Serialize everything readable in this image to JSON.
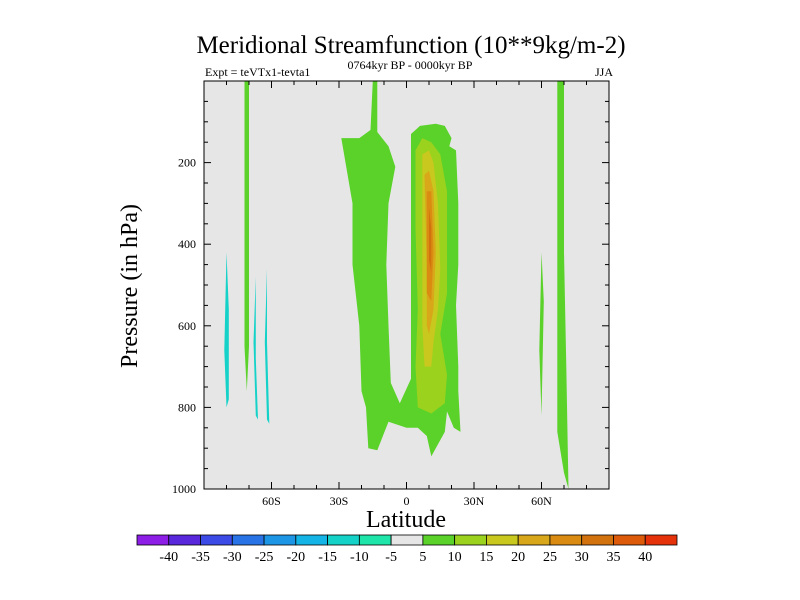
{
  "chart_data": {
    "type": "contour",
    "title": "Meridional Streamfunction (10**9kg/m-2)",
    "subtitle_left": "Expt = teVTx1-tevta1",
    "subtitle_center": "0764kyr BP - 0000kyr BP",
    "subtitle_right": "JJA",
    "xlabel": "Latitude",
    "ylabel": "Pressure (in hPa)",
    "xlim": [
      -90,
      90
    ],
    "ylim": [
      1000,
      0
    ],
    "x_ticks": [
      {
        "value": -60,
        "label": "60S"
      },
      {
        "value": -30,
        "label": "30S"
      },
      {
        "value": 0,
        "label": "0"
      },
      {
        "value": 30,
        "label": "30N"
      },
      {
        "value": 60,
        "label": "60N"
      }
    ],
    "y_ticks": [
      {
        "value": 200,
        "label": "200"
      },
      {
        "value": 400,
        "label": "400"
      },
      {
        "value": 600,
        "label": "600"
      },
      {
        "value": 800,
        "label": "800"
      },
      {
        "value": 1000,
        "label": "1000"
      }
    ],
    "background_level_color": "#e6e6e6",
    "filled_regions": [
      {
        "name": "main-band-5-10",
        "level": 5,
        "color": "#5ad22a",
        "points": [
          [
            -15,
            0
          ],
          [
            -13,
            0
          ],
          [
            -13,
            125
          ],
          [
            -8,
            160
          ],
          [
            -5,
            210
          ],
          [
            -8,
            300
          ],
          [
            -9,
            450
          ],
          [
            -8,
            600
          ],
          [
            -7,
            740
          ],
          [
            -3,
            790
          ],
          [
            2,
            730
          ],
          [
            2,
            130
          ],
          [
            6,
            110
          ],
          [
            13,
            105
          ],
          [
            17,
            110
          ],
          [
            20,
            140
          ],
          [
            19,
            160
          ],
          [
            22,
            170
          ],
          [
            23,
            300
          ],
          [
            23,
            450
          ],
          [
            22,
            550
          ],
          [
            23,
            700
          ],
          [
            23,
            760
          ],
          [
            24,
            860
          ],
          [
            21,
            850
          ],
          [
            18,
            810
          ],
          [
            17,
            860
          ],
          [
            11,
            920
          ],
          [
            9,
            870
          ],
          [
            5,
            850
          ],
          [
            0,
            850
          ],
          [
            -8,
            835
          ],
          [
            -13,
            905
          ],
          [
            -17,
            900
          ],
          [
            -18,
            800
          ],
          [
            -20,
            760
          ],
          [
            -21,
            600
          ],
          [
            -24,
            450
          ],
          [
            -24,
            300
          ],
          [
            -29,
            140
          ],
          [
            -21,
            140
          ],
          [
            -16,
            120
          ],
          [
            -15,
            0
          ]
        ]
      },
      {
        "name": "main-core-10-15",
        "level": 10,
        "color": "#9ad21e",
        "points": [
          [
            4,
            170
          ],
          [
            7,
            140
          ],
          [
            11,
            150
          ],
          [
            15,
            180
          ],
          [
            18,
            270
          ],
          [
            18,
            440
          ],
          [
            18,
            520
          ],
          [
            15,
            620
          ],
          [
            18,
            720
          ],
          [
            17,
            790
          ],
          [
            11,
            815
          ],
          [
            5,
            800
          ],
          [
            4,
            700
          ],
          [
            5,
            560
          ],
          [
            4,
            360
          ],
          [
            4,
            170
          ]
        ]
      },
      {
        "name": "main-core-15-20",
        "level": 15,
        "color": "#c8c81e",
        "points": [
          [
            7,
            180
          ],
          [
            10,
            170
          ],
          [
            12,
            200
          ],
          [
            14,
            300
          ],
          [
            15,
            460
          ],
          [
            14,
            560
          ],
          [
            12,
            640
          ],
          [
            11,
            700
          ],
          [
            8,
            700
          ],
          [
            7,
            600
          ],
          [
            7,
            400
          ],
          [
            7,
            180
          ]
        ]
      },
      {
        "name": "main-core-20-25",
        "level": 20,
        "color": "#d8a81a",
        "points": [
          [
            8,
            230
          ],
          [
            10,
            220
          ],
          [
            12,
            270
          ],
          [
            13,
            420
          ],
          [
            12,
            560
          ],
          [
            10,
            620
          ],
          [
            9,
            600
          ],
          [
            9,
            450
          ],
          [
            8,
            230
          ]
        ]
      },
      {
        "name": "main-core-25-30",
        "level": 25,
        "color": "#da8c12",
        "points": [
          [
            9,
            270
          ],
          [
            11,
            270
          ],
          [
            12,
            420
          ],
          [
            11,
            540
          ],
          [
            9,
            520
          ],
          [
            9,
            270
          ]
        ]
      },
      {
        "name": "main-core-30-35",
        "level": 30,
        "color": "#d2720f",
        "points": [
          [
            10,
            310
          ],
          [
            11,
            360
          ],
          [
            11,
            470
          ],
          [
            10,
            440
          ],
          [
            10,
            310
          ]
        ]
      },
      {
        "name": "sh-streak-green",
        "level": 5,
        "color": "#5ad22a",
        "points": [
          [
            -72,
            0
          ],
          [
            -70,
            0
          ],
          [
            -70,
            650
          ],
          [
            -71,
            760
          ],
          [
            -72,
            650
          ],
          [
            -72,
            0
          ]
        ]
      },
      {
        "name": "nh-streak-green",
        "level": 5,
        "color": "#5ad22a",
        "points": [
          [
            67,
            0
          ],
          [
            70,
            0
          ],
          [
            70,
            420
          ],
          [
            71,
            700
          ],
          [
            72,
            1000
          ],
          [
            70,
            960
          ],
          [
            67,
            860
          ],
          [
            67,
            0
          ]
        ]
      },
      {
        "name": "nh-streak-green-small",
        "level": 5,
        "color": "#5ad22a",
        "points": [
          [
            60,
            420
          ],
          [
            61,
            540
          ],
          [
            60,
            820
          ],
          [
            59,
            660
          ],
          [
            60,
            420
          ]
        ]
      },
      {
        "name": "sh-streak-cyan-1",
        "level": -10,
        "color": "#14d2c8",
        "points": [
          [
            -80,
            420
          ],
          [
            -79,
            560
          ],
          [
            -79,
            780
          ],
          [
            -80,
            800
          ],
          [
            -81,
            660
          ],
          [
            -80,
            420
          ]
        ]
      },
      {
        "name": "sh-streak-cyan-2",
        "level": -10,
        "color": "#14d2c8",
        "points": [
          [
            -67,
            480
          ],
          [
            -67,
            680
          ],
          [
            -66,
            830
          ],
          [
            -67,
            820
          ],
          [
            -68,
            640
          ],
          [
            -67,
            480
          ]
        ]
      },
      {
        "name": "sh-streak-cyan-3",
        "level": -10,
        "color": "#14d2c8",
        "points": [
          [
            -62,
            460
          ],
          [
            -62,
            640
          ],
          [
            -61,
            840
          ],
          [
            -62,
            830
          ],
          [
            -63,
            640
          ],
          [
            -62,
            460
          ]
        ]
      }
    ],
    "colorbar": {
      "levels": [
        -40,
        -35,
        -30,
        -25,
        -20,
        -15,
        -10,
        -5,
        5,
        10,
        15,
        20,
        25,
        30,
        35,
        40
      ],
      "labels": [
        "-40",
        "-35",
        "-30",
        "-25",
        "-20",
        "-15",
        "-10",
        "-5",
        "5",
        "10",
        "15",
        "20",
        "25",
        "30",
        "35",
        "40"
      ],
      "colors": [
        "#8c1ee6",
        "#5a28dc",
        "#3c4be6",
        "#2874e6",
        "#1e96e6",
        "#14b4e6",
        "#14d2c8",
        "#1ee6aa",
        "#e6e6e6",
        "#5ad22a",
        "#9ad21e",
        "#c8c81e",
        "#d8a81a",
        "#da8c12",
        "#d2720f",
        "#dc5a0a",
        "#e6320a"
      ]
    }
  }
}
